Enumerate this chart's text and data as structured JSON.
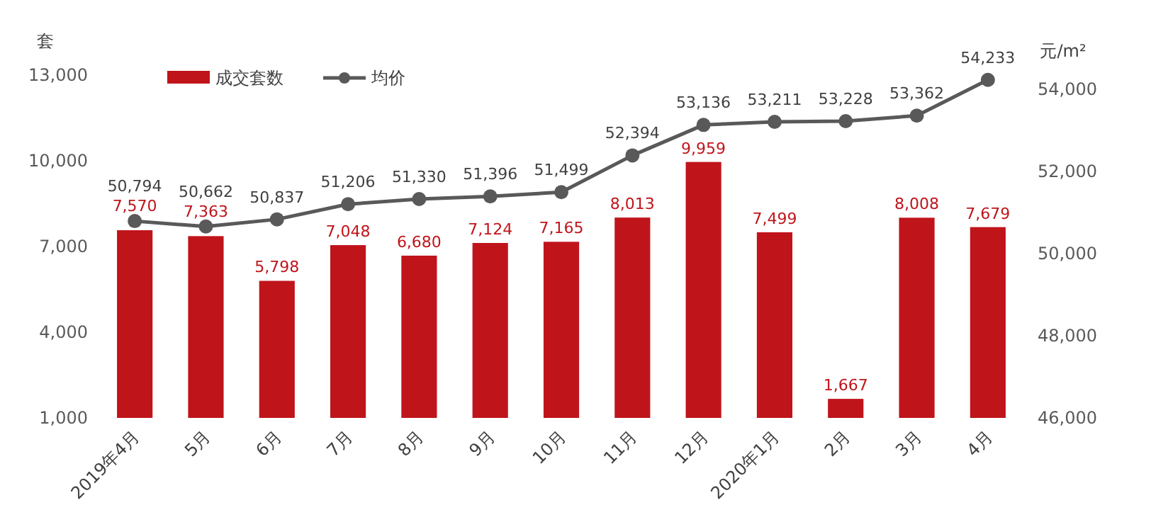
{
  "chart_data": {
    "type": "bar",
    "categories": [
      "2019年4月",
      "5月",
      "6月",
      "7月",
      "8月",
      "9月",
      "10月",
      "11月",
      "12月",
      "2020年1月",
      "2月",
      "3月",
      "4月"
    ],
    "series": [
      {
        "name": "成交套数",
        "color": "#c0141b",
        "values": [
          7570,
          7363,
          5798,
          7048,
          6680,
          7124,
          7165,
          8013,
          9959,
          7499,
          1667,
          8008,
          7679
        ],
        "value_labels": [
          "7,570",
          "7,363",
          "5,798",
          "7,048",
          "6,680",
          "7,124",
          "7,165",
          "8,013",
          "9,959",
          "7,499",
          "1,667",
          "8,008",
          "7,679"
        ]
      },
      {
        "name": "均价",
        "type": "line",
        "axis": "y2",
        "color": "#595959",
        "marker": "circle",
        "values": [
          50794,
          50662,
          50837,
          51206,
          51330,
          51396,
          51499,
          52394,
          53136,
          53211,
          53228,
          53362,
          54233
        ],
        "value_labels": [
          "50,794",
          "50,662",
          "50,837",
          "51,206",
          "51,330",
          "51,396",
          "51,499",
          "52,394",
          "53,136",
          "53,211",
          "53,228",
          "53,362",
          "54,233"
        ]
      }
    ],
    "ylabel": "套",
    "y2label": "元/m²",
    "ylim": [
      1000,
      13000
    ],
    "yticks": [
      {
        "value": 1000,
        "label": "1,000"
      },
      {
        "value": 4000,
        "label": "4,000"
      },
      {
        "value": 7000,
        "label": "7,000"
      },
      {
        "value": 10000,
        "label": "10,000"
      },
      {
        "value": 13000,
        "label": "13,000"
      }
    ],
    "y2lim": [
      46000,
      54350
    ],
    "y2ticks": [
      {
        "value": 46000,
        "label": "46,000"
      },
      {
        "value": 48000,
        "label": "48,000"
      },
      {
        "value": 50000,
        "label": "50,000"
      },
      {
        "value": 52000,
        "label": "52,000"
      },
      {
        "value": 54000,
        "label": "54,000"
      }
    ],
    "legend": "top left",
    "grid": false
  }
}
